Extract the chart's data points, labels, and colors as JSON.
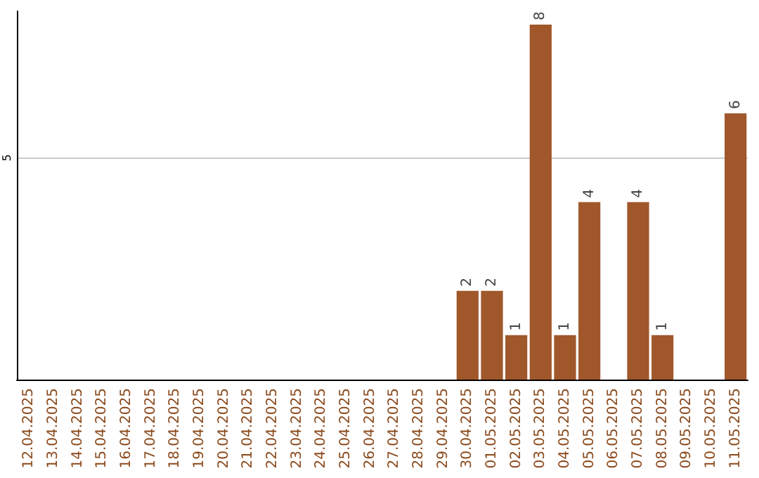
{
  "chart_data": {
    "type": "bar",
    "categories": [
      "12.04.2025",
      "13.04.2025",
      "14.04.2025",
      "15.04.2025",
      "16.04.2025",
      "17.04.2025",
      "18.04.2025",
      "19.04.2025",
      "20.04.2025",
      "21.04.2025",
      "22.04.2025",
      "23.04.2025",
      "24.04.2025",
      "25.04.2025",
      "26.04.2025",
      "27.04.2025",
      "28.04.2025",
      "29.04.2025",
      "30.04.2025",
      "01.05.2025",
      "02.05.2025",
      "03.05.2025",
      "04.05.2025",
      "05.05.2025",
      "06.05.2025",
      "07.05.2025",
      "08.05.2025",
      "09.05.2025",
      "10.05.2025",
      "11.05.2025"
    ],
    "values": [
      null,
      null,
      null,
      null,
      null,
      null,
      null,
      null,
      null,
      null,
      null,
      null,
      null,
      null,
      null,
      null,
      null,
      null,
      2,
      2,
      1,
      8,
      1,
      4,
      null,
      4,
      1,
      null,
      null,
      6
    ],
    "color": "#a0572a",
    "ylim": [
      0,
      8.3
    ],
    "yticks": [
      5
    ],
    "grid": "y",
    "data_labels": true
  }
}
